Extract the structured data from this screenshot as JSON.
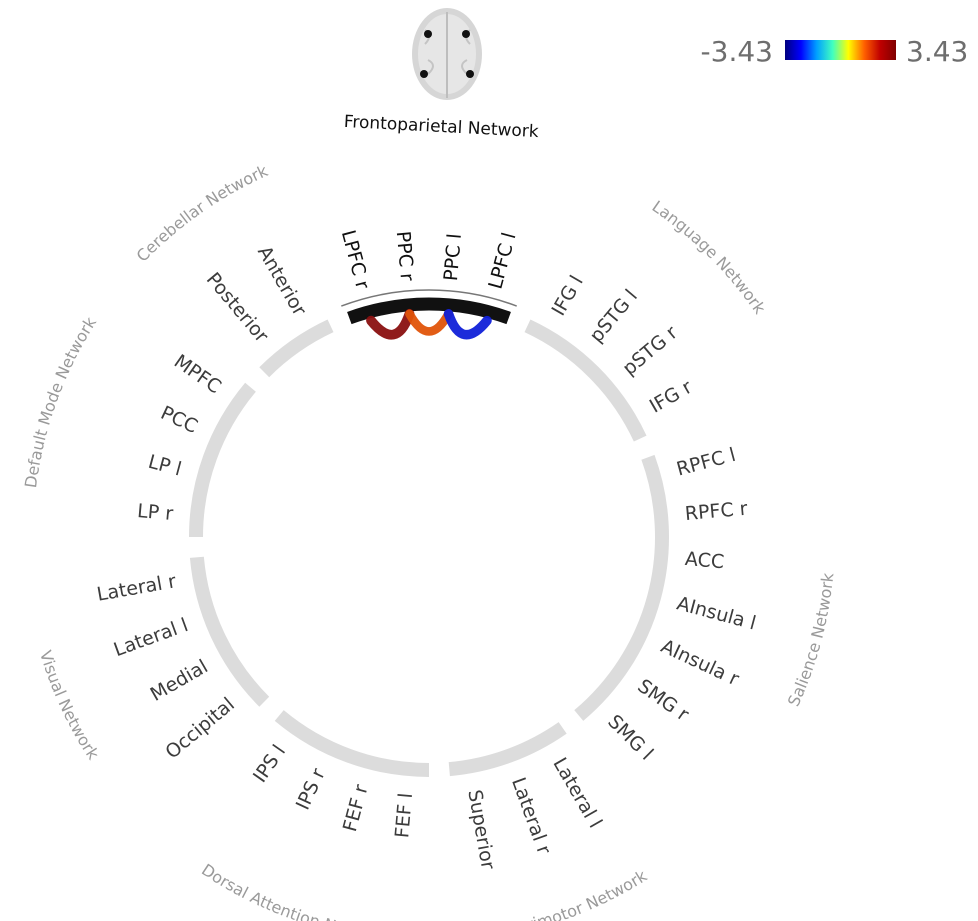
{
  "title": "Frontoparietal Network",
  "colorbar": {
    "min_label": "-3.43",
    "max_label": "3.43",
    "colors": [
      "#00007f",
      "#0000ff",
      "#00a0ff",
      "#40ffc0",
      "#ffff00",
      "#ff6000",
      "#c00000",
      "#7f0000"
    ]
  },
  "highlight_network": "Frontoparietal Network",
  "networks": [
    {
      "name": "Frontoparietal Network",
      "rois": [
        "LPFC r",
        "PPC r",
        "PPC l",
        "LPFC l"
      ]
    },
    {
      "name": "Language Network",
      "rois": [
        "IFG l",
        "pSTG l",
        "pSTG r",
        "IFG r"
      ]
    },
    {
      "name": "Salience Network",
      "rois": [
        "RPFC l",
        "RPFC r",
        "ACC",
        "AInsula l",
        "AInsula r",
        "SMG r",
        "SMG l"
      ]
    },
    {
      "name": "Sensorimotor Network",
      "rois": [
        "Lateral l",
        "Lateral r",
        "Superior"
      ]
    },
    {
      "name": "Dorsal Attention Network",
      "rois": [
        "FEF l",
        "FEF r",
        "IPS r",
        "IPS l"
      ]
    },
    {
      "name": "Visual Network",
      "rois": [
        "Occipital",
        "Medial",
        "Lateral l",
        "Lateral r"
      ]
    },
    {
      "name": "Default Mode Network",
      "rois": [
        "LP r",
        "LP l",
        "PCC",
        "MPFC"
      ]
    },
    {
      "name": "Cerebellar Network",
      "rois": [
        "Posterior",
        "Anterior"
      ]
    }
  ],
  "connections": [
    {
      "from": "LPFC r",
      "to": "PPC r",
      "value": 3.1,
      "color": "#8a1010"
    },
    {
      "from": "PPC r",
      "to": "PPC l",
      "value": 2.6,
      "color": "#e0540a"
    },
    {
      "from": "PPC l",
      "to": "LPFC l",
      "value": -3.0,
      "color": "#1020d8"
    }
  ]
}
